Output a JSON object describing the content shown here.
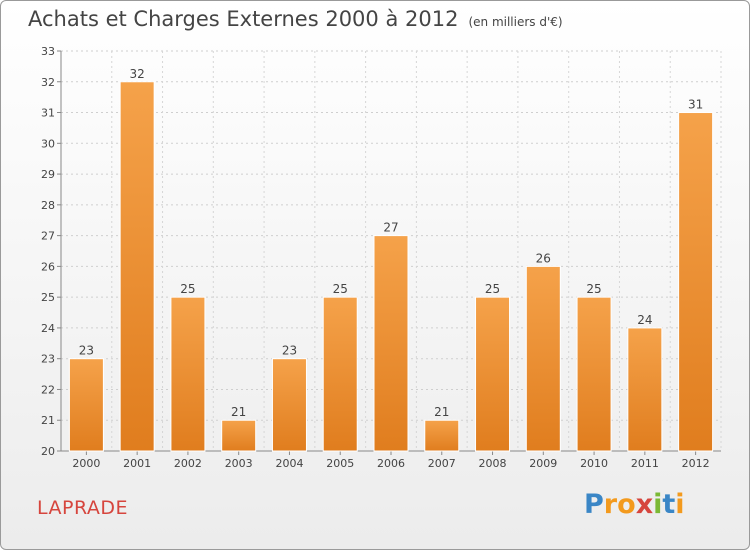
{
  "title": "Achats et Charges Externes 2000 à 2012",
  "subtitle": "(en milliers d'€)",
  "location": "LAPRADE",
  "logo": {
    "letters": [
      "P",
      "r",
      "o",
      "x",
      "i",
      "t",
      "i"
    ],
    "colors": [
      "#3a86c6",
      "#f39a1d",
      "#f39a1d",
      "#d6453d",
      "#7bb935",
      "#3a86c6",
      "#f39a1d"
    ]
  },
  "colors": {
    "bar_top": "#f5a24a",
    "bar_bottom": "#e07d1e",
    "bar_edge": "#ffffff"
  },
  "chart_data": {
    "type": "bar",
    "categories": [
      "2000",
      "2001",
      "2002",
      "2003",
      "2004",
      "2005",
      "2006",
      "2007",
      "2008",
      "2009",
      "2010",
      "2011",
      "2012"
    ],
    "values": [
      23,
      32,
      25,
      21,
      23,
      25,
      27,
      21,
      25,
      26,
      25,
      24,
      31
    ],
    "ylim": [
      20,
      33
    ],
    "yticks": [
      20,
      21,
      22,
      23,
      24,
      25,
      26,
      27,
      28,
      29,
      30,
      31,
      32,
      33
    ],
    "grid": true,
    "data_labels": true
  }
}
